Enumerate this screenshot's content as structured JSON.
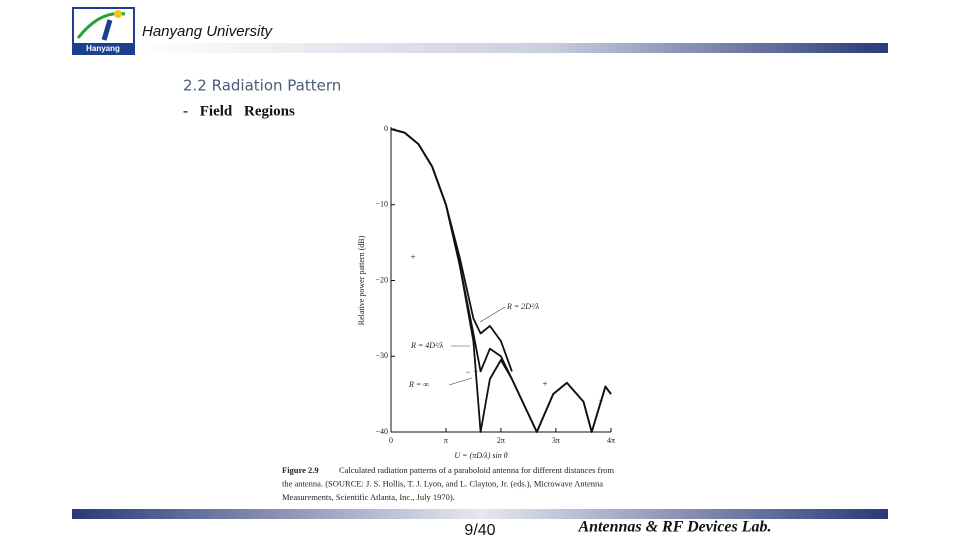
{
  "header": {
    "title": "Hanyang University",
    "logo_text": "Hanyang"
  },
  "section_title": "2.2 Radiation Pattern",
  "bullet": "- Field Regions",
  "chart_data": {
    "type": "line",
    "y_label": "Relative power pattern (dB)",
    "x_label": "U = (πD/λ) sin θ",
    "x": [
      0,
      0.79,
      1.57,
      2.36,
      3.14,
      3.93,
      4.71,
      5.12,
      5.65,
      6.28,
      6.91,
      8.33,
      9.27,
      10.05,
      11.0,
      11.47,
      12.25,
      12.57
    ],
    "series": [
      {
        "name": "R = ∞",
        "color": "#111111",
        "values": [
          0,
          -0.5,
          -2,
          -5,
          -10,
          -18,
          -28,
          -40,
          -33,
          -30.5,
          -33,
          -40,
          -35,
          -33.5,
          -36,
          -40,
          -34,
          -35
        ]
      },
      {
        "name": "R = 4D²/λ",
        "color": "#111111",
        "values": [
          0,
          -0.5,
          -2,
          -5,
          -10,
          -18,
          -27,
          -32,
          -29,
          -30,
          -33,
          -40,
          -35,
          -33.5,
          -36,
          -40,
          -34,
          -35
        ]
      },
      {
        "name": "R = 2D²/λ",
        "color": "#111111",
        "values": [
          0,
          -0.5,
          -2,
          -5,
          -10,
          -17,
          -25,
          -27,
          -26,
          -28,
          -32,
          null,
          null,
          null,
          null,
          null,
          null,
          null
        ]
      }
    ],
    "xlim": [
      0,
      12.57
    ],
    "xticks": [
      0,
      {
        "value": 3.14,
        "label": "π"
      },
      {
        "value": 6.28,
        "label": "2π"
      },
      {
        "value": 9.42,
        "label": "3π"
      },
      {
        "value": 12.57,
        "label": "4π"
      }
    ],
    "ylim": [
      -40,
      0
    ],
    "yticks": [
      0,
      {
        "value": -10,
        "label": "−10"
      },
      {
        "value": -20,
        "label": "−20"
      },
      {
        "value": -30,
        "label": "−30"
      },
      {
        "value": -40,
        "label": "−40"
      }
    ],
    "annotations": [
      "+",
      "+",
      "−",
      "−",
      "−"
    ],
    "caption_label": "Figure 2.9",
    "caption_lines": [
      "Calculated radiation patterns of a paraboloid antenna for different distances from",
      "the antenna. (SOURCE: J. S. Hollis, T. J. Lyon, and L. Clayton, Jr. (eds.), Microwave Antenna",
      "Measurements, Scientific Atlanta, Inc., July 1970)."
    ]
  },
  "footer": {
    "page": "9/40",
    "lab": "Antennas & RF Devices Lab."
  }
}
